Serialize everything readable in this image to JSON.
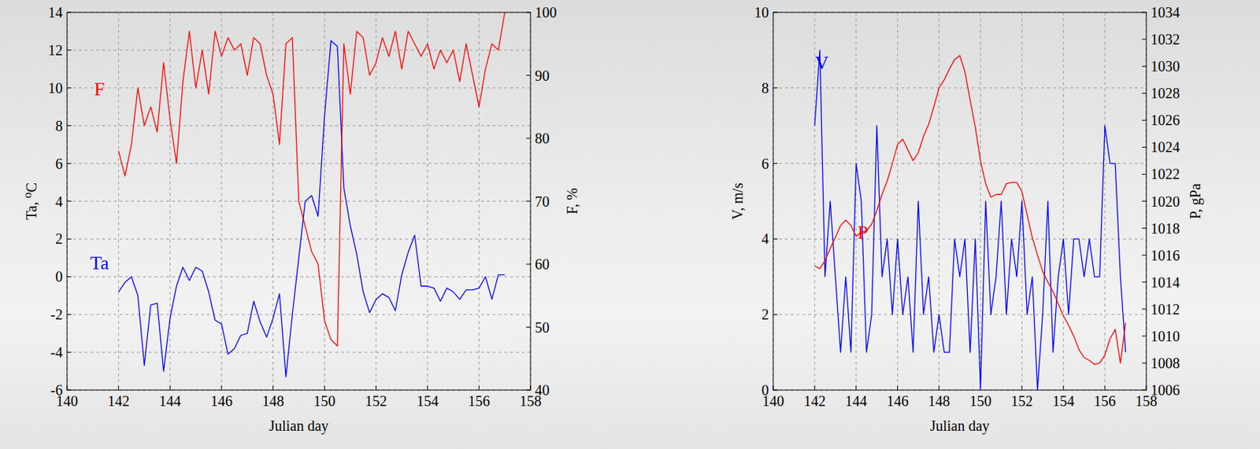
{
  "chart_data": [
    {
      "type": "line",
      "x_label": "Julian day",
      "y_label": "Ta, ⁰C",
      "y2_label": "F, %",
      "xlim": [
        140,
        158
      ],
      "xticks": [
        140,
        142,
        144,
        146,
        148,
        150,
        152,
        154,
        156,
        158
      ],
      "ylim": [
        -6,
        14
      ],
      "yticks": [
        -6,
        -4,
        -2,
        0,
        2,
        4,
        6,
        8,
        10,
        12,
        14
      ],
      "y2lim": [
        40,
        100
      ],
      "y2ticks": [
        40,
        50,
        60,
        70,
        80,
        90,
        100
      ],
      "grid": true,
      "x": [
        142,
        142.25,
        142.5,
        142.75,
        143,
        143.25,
        143.5,
        143.75,
        144,
        144.25,
        144.5,
        144.75,
        145,
        145.25,
        145.5,
        145.75,
        146,
        146.25,
        146.5,
        146.75,
        147,
        147.25,
        147.5,
        147.75,
        148,
        148.25,
        148.5,
        148.75,
        149,
        149.25,
        149.5,
        149.75,
        150,
        150.25,
        150.5,
        150.75,
        151,
        151.25,
        151.5,
        151.75,
        152,
        152.25,
        152.5,
        152.75,
        153,
        153.25,
        153.5,
        153.75,
        154,
        154.25,
        154.5,
        154.75,
        155,
        155.25,
        155.5,
        155.75,
        156,
        156.25,
        156.5,
        156.75,
        157
      ],
      "series": [
        {
          "name": "Ta",
          "color": "#0000ff",
          "values": [
            -0.8,
            -0.3,
            0,
            -1,
            -4.7,
            -1.5,
            -1.4,
            -5,
            -2.2,
            -0.5,
            0.5,
            -0.2,
            0.5,
            0.3,
            -0.8,
            -2.3,
            -2.5,
            -4.1,
            -3.8,
            -3.1,
            -3,
            -1.3,
            -2.4,
            -3.2,
            -2.2,
            -0.9,
            -5.3,
            -2,
            1,
            4,
            4.3,
            3.2,
            8.5,
            12.5,
            12.2,
            4.7,
            2.7,
            1.2,
            -0.8,
            -1.9,
            -1.2,
            -0.9,
            -1.1,
            -1.8,
            0.1,
            1.3,
            2.2,
            -0.5,
            -0.5,
            -0.6,
            -1.3,
            -0.6,
            -0.8,
            -1.2,
            -0.7,
            -0.7,
            -0.6,
            0,
            -1.2,
            0.1,
            0.1
          ]
        },
        {
          "name": "F",
          "color": "#ff0000",
          "axis": "y2",
          "values": [
            78,
            74,
            79,
            88,
            82,
            85,
            81,
            92,
            83,
            76,
            89,
            97,
            88,
            94,
            87,
            97,
            93,
            96,
            94,
            95,
            90,
            96,
            95,
            90,
            87,
            79,
            95,
            96,
            70,
            66,
            62,
            60,
            51,
            48,
            47,
            95,
            87,
            97,
            96,
            90,
            92,
            96,
            93,
            97,
            91,
            97,
            95,
            93,
            95,
            91,
            94,
            92,
            94,
            89,
            95,
            90,
            85,
            91,
            95,
            94,
            100
          ]
        }
      ]
    },
    {
      "type": "line",
      "x_label": "Julian day",
      "y_label": "V, m/s",
      "y2_label": "P, gPa",
      "xlim": [
        140,
        158
      ],
      "xticks": [
        140,
        142,
        144,
        146,
        148,
        150,
        152,
        154,
        156,
        158
      ],
      "ylim": [
        0,
        10
      ],
      "yticks": [
        0,
        2,
        4,
        6,
        8,
        10
      ],
      "y2lim": [
        1006,
        1034
      ],
      "y2ticks": [
        1006,
        1008,
        1010,
        1012,
        1014,
        1016,
        1018,
        1020,
        1022,
        1024,
        1026,
        1028,
        1030,
        1032,
        1034
      ],
      "grid": true,
      "x": [
        142,
        142.25,
        142.5,
        142.75,
        143,
        143.25,
        143.5,
        143.75,
        144,
        144.25,
        144.5,
        144.75,
        145,
        145.25,
        145.5,
        145.75,
        146,
        146.25,
        146.5,
        146.75,
        147,
        147.25,
        147.5,
        147.75,
        148,
        148.25,
        148.5,
        148.75,
        149,
        149.25,
        149.5,
        149.75,
        150,
        150.25,
        150.5,
        150.75,
        151,
        151.25,
        151.5,
        151.75,
        152,
        152.25,
        152.5,
        152.75,
        153,
        153.25,
        153.5,
        153.75,
        154,
        154.25,
        154.5,
        154.75,
        155,
        155.25,
        155.5,
        155.75,
        156,
        156.25,
        156.5,
        156.75,
        157
      ],
      "series": [
        {
          "name": "V",
          "color": "#0000ff",
          "values": [
            7,
            9,
            3,
            5,
            3,
            1,
            3,
            1,
            6,
            5,
            1,
            2,
            7,
            3,
            4,
            2,
            4,
            2,
            3,
            1,
            5,
            2,
            3,
            1,
            2,
            1,
            1,
            4,
            3,
            4,
            1,
            4,
            0,
            5,
            2,
            3,
            5,
            2,
            4,
            3,
            5,
            2,
            3,
            0,
            2,
            5,
            1,
            3,
            4,
            2,
            4,
            4,
            3,
            4,
            3,
            3,
            7,
            6,
            6,
            3,
            1
          ]
        },
        {
          "name": "P",
          "color": "#ff0000",
          "axis": "y2",
          "values": [
            1015.2,
            1015.0,
            1015.6,
            1016.5,
            1017.3,
            1018.2,
            1018.6,
            1018.2,
            1017.4,
            1017.7,
            1017.8,
            1018.3,
            1019.3,
            1020.5,
            1021.5,
            1022.8,
            1024.2,
            1024.6,
            1023.8,
            1023.0,
            1023.6,
            1024.8,
            1025.7,
            1027.0,
            1028.4,
            1029.0,
            1029.8,
            1030.5,
            1030.8,
            1029.6,
            1027.5,
            1025.5,
            1023.0,
            1021.3,
            1020.3,
            1020.5,
            1020.5,
            1021.3,
            1021.4,
            1021.4,
            1020.7,
            1019.0,
            1017.3,
            1016.0,
            1014.8,
            1014.0,
            1013.3,
            1012.4,
            1011.5,
            1010.8,
            1010.0,
            1009.0,
            1008.4,
            1008.2,
            1007.9,
            1008.0,
            1008.6,
            1009.8,
            1010.5,
            1008.0,
            1011.0
          ]
        }
      ]
    }
  ]
}
